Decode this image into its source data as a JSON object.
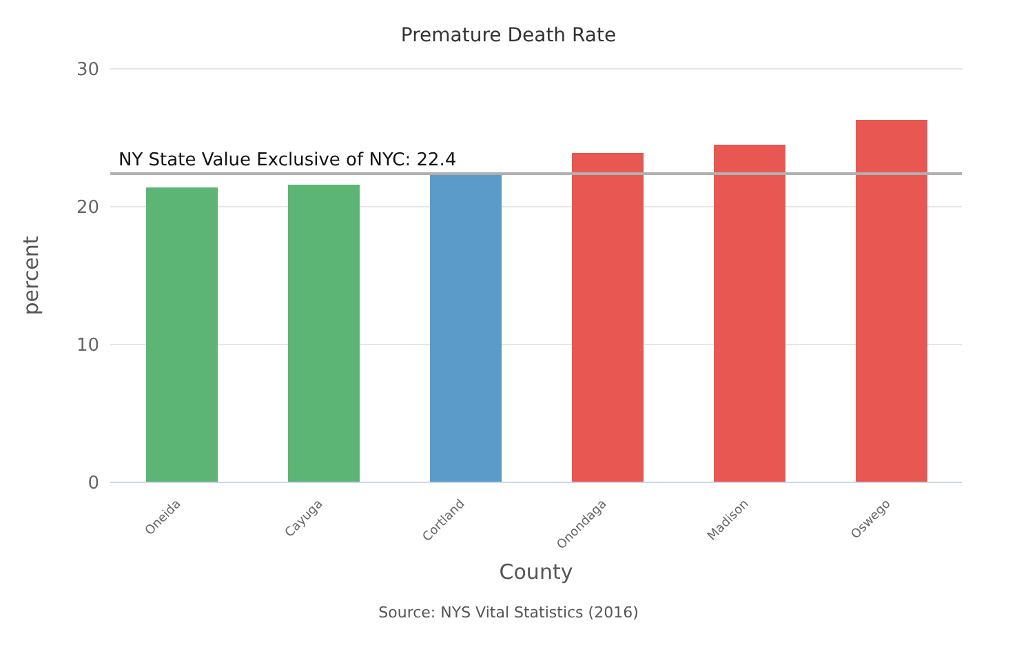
{
  "chart_data": {
    "type": "bar",
    "title": "Premature Death Rate",
    "xlabel": "County",
    "ylabel": "percent",
    "categories": [
      "Oneida",
      "Cayuga",
      "Cortland",
      "Onondaga",
      "Madison",
      "Oswego"
    ],
    "values": [
      21.4,
      21.6,
      22.3,
      23.9,
      24.5,
      26.3
    ],
    "colors": [
      "#5cb574",
      "#5cb574",
      "#5a9bc9",
      "#e95752",
      "#e95752",
      "#e95752"
    ],
    "ylim": [
      0,
      30
    ],
    "yticks": [
      0,
      10,
      20,
      30
    ],
    "grid": "y",
    "ref_lines": [
      {
        "axis": "y",
        "value": 22.4,
        "label": "NY State Value Exclusive of NYC: 22.4",
        "color": "#b0b0b0"
      }
    ],
    "annotations": [
      "Source: NYS Vital Statistics (2016)"
    ]
  }
}
